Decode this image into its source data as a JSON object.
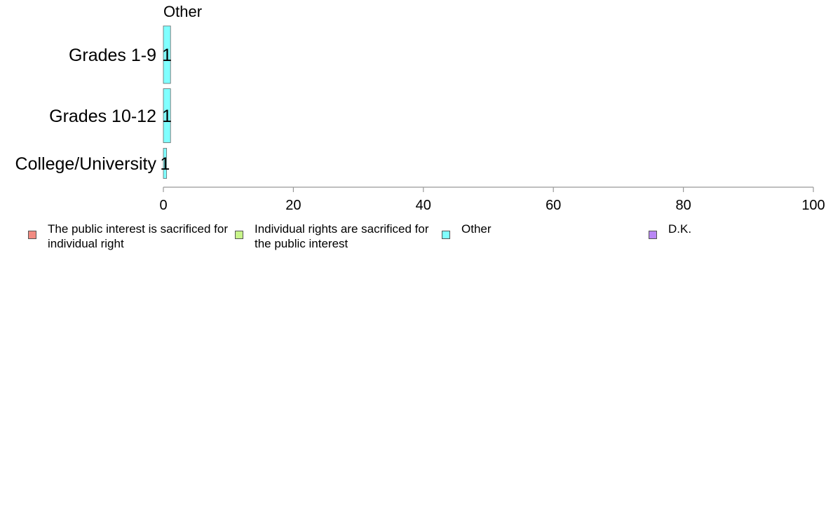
{
  "chart_data": {
    "type": "bar",
    "orientation": "horizontal",
    "title": "Other",
    "categories": [
      "Grades 1-9",
      "Grades 10-12",
      "College/University"
    ],
    "series": [
      {
        "name": "Other",
        "values": [
          1.1,
          1.1,
          0.5
        ],
        "labels": [
          "1",
          "1",
          "1"
        ]
      }
    ],
    "xlim": [
      0,
      100
    ],
    "xticks": [
      0,
      20,
      40,
      60,
      80,
      100
    ],
    "grid": false,
    "legend": [
      {
        "label": "The public interest is sacrificed for individual right",
        "color": "#f28b82"
      },
      {
        "label": "Individual rights are sacrificed for the public interest",
        "color": "#c8f58a"
      },
      {
        "label": "Other",
        "color": "#80ffff"
      },
      {
        "label": "D.K.",
        "color": "#b987f5"
      }
    ],
    "legend_position": "bottom",
    "bar_color": "#80ffff"
  }
}
